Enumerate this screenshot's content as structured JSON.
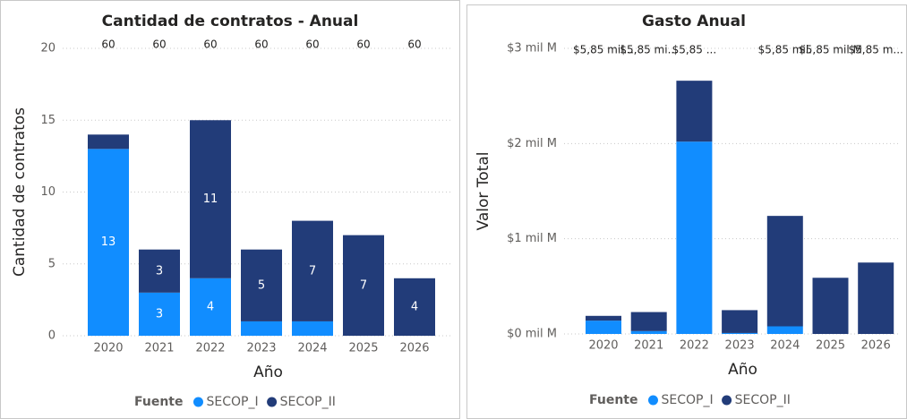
{
  "chart_data": [
    {
      "type": "stacked_bar",
      "title": "Cantidad de contratos - Anual",
      "x_label": "Año",
      "y_label": "Cantidad de contratos",
      "legend_title": "Fuente",
      "categories": [
        "2020",
        "2021",
        "2022",
        "2023",
        "2024",
        "2025",
        "2026"
      ],
      "series": [
        {
          "name": "SECOP_I",
          "color": "#118dff",
          "values": [
            13,
            3,
            4,
            1,
            1,
            0,
            0
          ],
          "value_labels": [
            "13",
            "3",
            "4",
            null,
            null,
            null,
            null
          ]
        },
        {
          "name": "SECOP_II",
          "color": "#223c79",
          "values": [
            1,
            3,
            11,
            5,
            7,
            7,
            4
          ],
          "value_labels": [
            null,
            "3",
            "11",
            "5",
            "7",
            "7",
            "4"
          ]
        }
      ],
      "top_labels": [
        60,
        60,
        60,
        60,
        60,
        60,
        60
      ],
      "ylim": [
        0,
        20
      ],
      "yticks": [
        0,
        5,
        10,
        15,
        20
      ],
      "grid": true
    },
    {
      "type": "stacked_bar",
      "title": "Gasto Anual",
      "x_label": "Año",
      "y_label": "Valor Total",
      "legend_title": "Fuente",
      "categories": [
        "2020",
        "2021",
        "2022",
        "2023",
        "2024",
        "2025",
        "2026"
      ],
      "series": [
        {
          "name": "SECOP_I",
          "color": "#118dff",
          "values": [
            140000000,
            30000000,
            2020000000,
            10000000,
            80000000,
            0,
            0
          ]
        },
        {
          "name": "SECOP_II",
          "color": "#223c79",
          "values": [
            50000000,
            200000000,
            640000000,
            240000000,
            1160000000,
            590000000,
            750000000
          ]
        }
      ],
      "top_labels": [
        "$5,85 mil...",
        "$5,85 mi...",
        "$5,85 ...",
        null,
        "$5,85 mil.",
        "$5,85 mil M",
        "$5,85 m..."
      ],
      "ylim": [
        0,
        3000000000
      ],
      "yticks": [
        {
          "value": 0,
          "label": "$0 mil M"
        },
        {
          "value": 1000000000,
          "label": "$1 mil M"
        },
        {
          "value": 2000000000,
          "label": "$2 mil M"
        },
        {
          "value": 3000000000,
          "label": "$3 mil M"
        }
      ],
      "grid": true
    }
  ]
}
